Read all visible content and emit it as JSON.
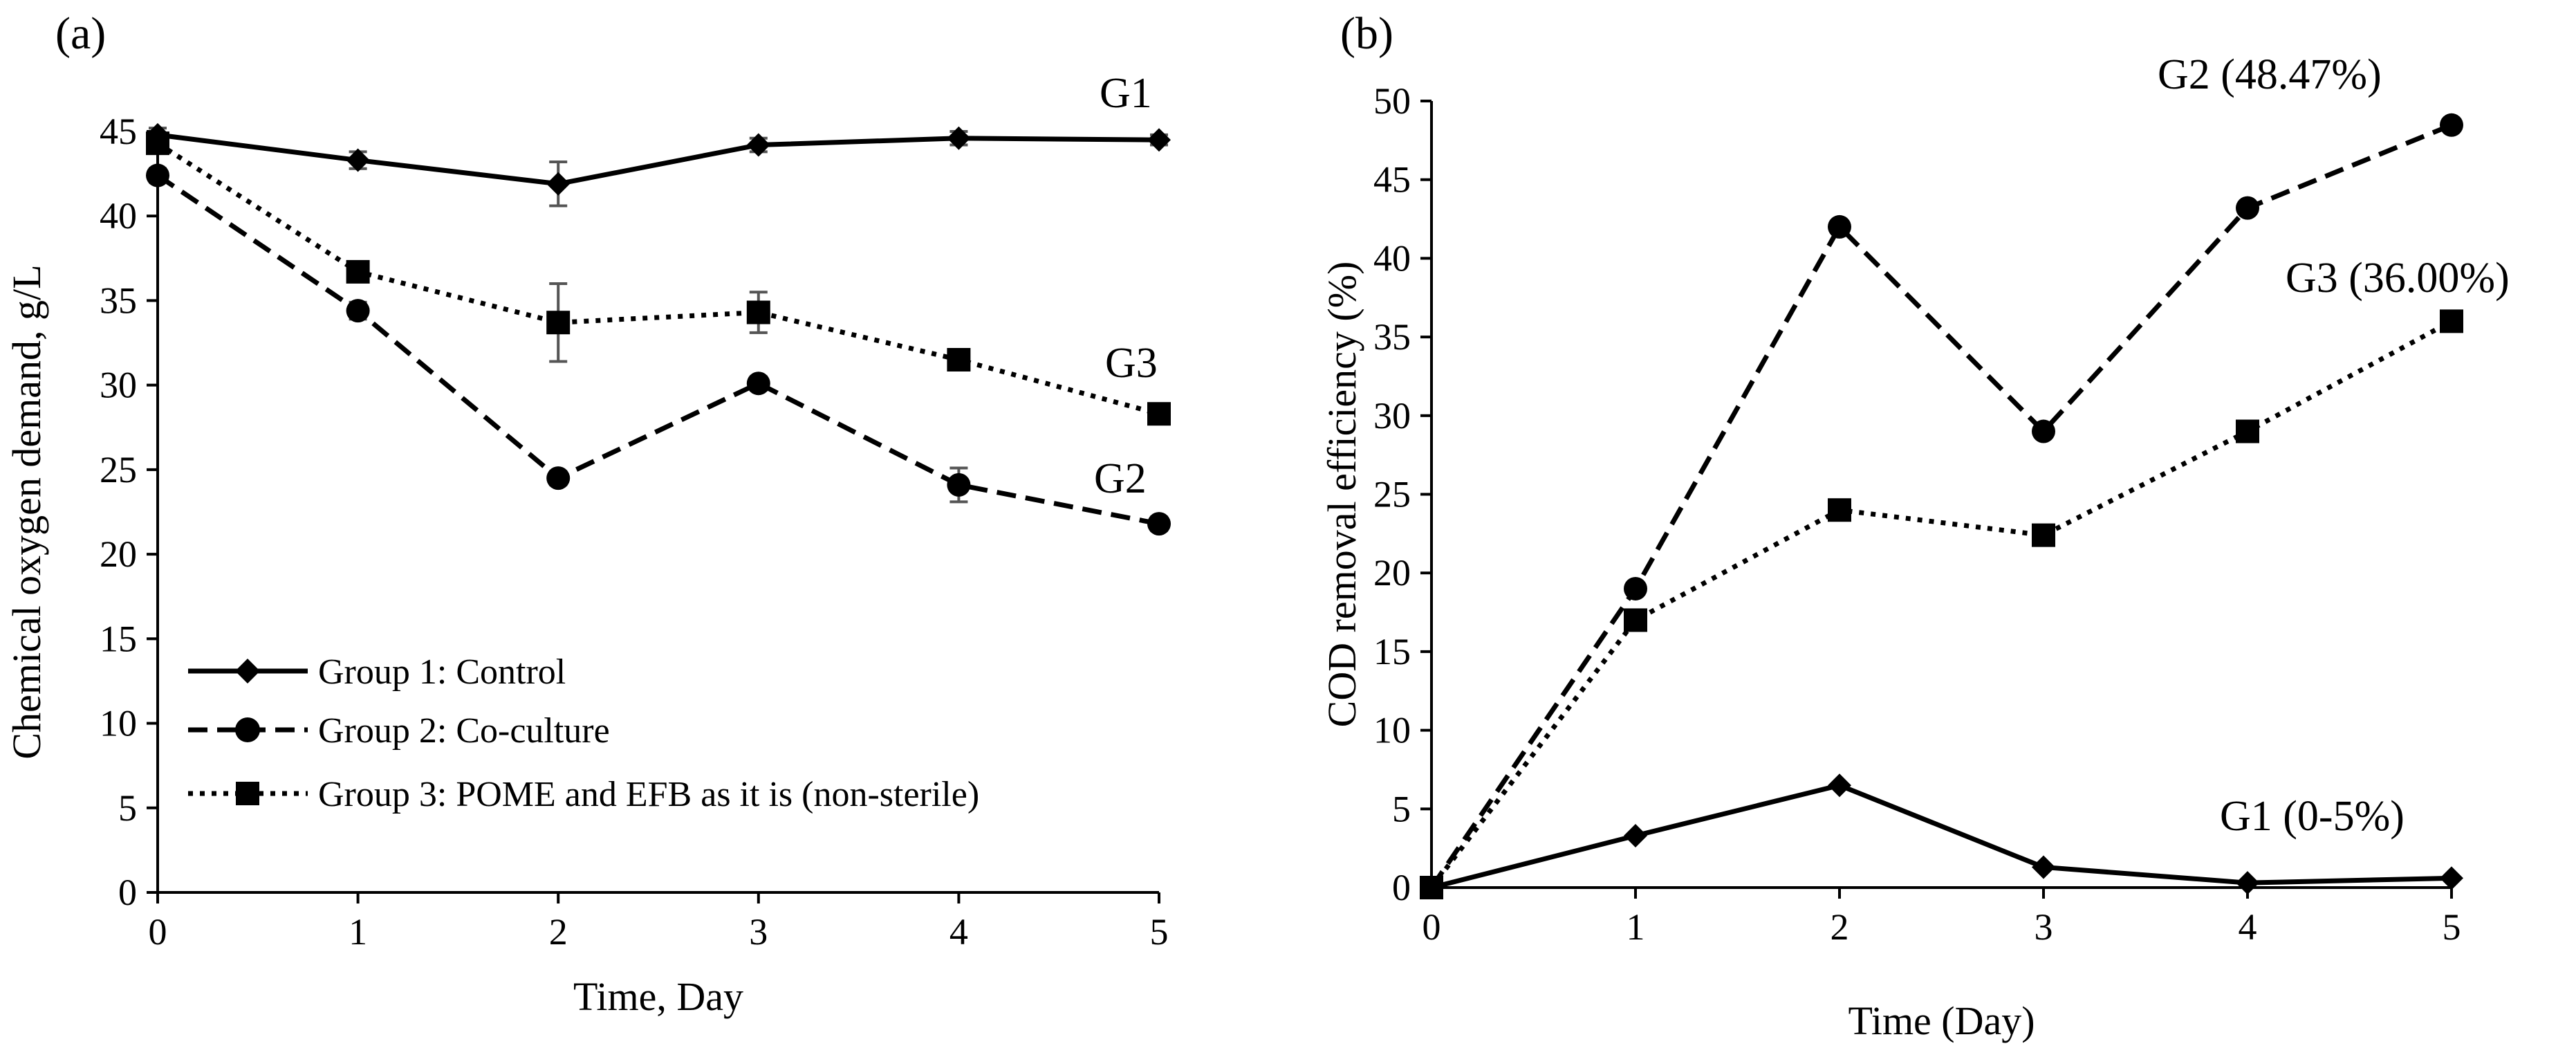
{
  "chart_data": [
    {
      "panel": "(a)",
      "type": "line",
      "xlabel": "Time, Day",
      "ylabel": "Chemical oxygen demand, g/L",
      "xlim": [
        0,
        5
      ],
      "ylim": [
        0,
        45
      ],
      "xticks": [
        0,
        1,
        2,
        3,
        4,
        5
      ],
      "yticks": [
        0,
        5,
        10,
        15,
        20,
        25,
        30,
        35,
        40,
        45
      ],
      "legend_position": "bottom-left",
      "series": [
        {
          "name": "Group 1: Control",
          "short": "G1",
          "marker": "diamond",
          "dash": "solid",
          "x": [
            0,
            1,
            2,
            3,
            4,
            5
          ],
          "values": [
            44.8,
            43.3,
            41.9,
            44.2,
            44.6,
            44.5
          ],
          "errors": [
            0.4,
            0.5,
            1.3,
            0.4,
            0.4,
            0.3
          ]
        },
        {
          "name": "Group 2: Co-culture",
          "short": "G2",
          "marker": "circle",
          "dash": "dashed",
          "x": [
            0,
            1,
            2,
            3,
            4,
            5
          ],
          "values": [
            42.4,
            34.4,
            24.5,
            30.1,
            24.1,
            21.8
          ],
          "errors": [
            0.4,
            0.5,
            0.4,
            0.4,
            1.0,
            0.4
          ]
        },
        {
          "name": "Group 3: POME and EFB as it is (non-sterile)",
          "short": "G3",
          "marker": "square",
          "dash": "dotted",
          "x": [
            0,
            1,
            2,
            3,
            4,
            5
          ],
          "values": [
            44.3,
            36.7,
            33.7,
            34.3,
            31.5,
            28.3
          ],
          "errors": [
            0.4,
            0.5,
            2.3,
            1.2,
            0.4,
            0.4
          ]
        }
      ],
      "annotations": [
        "G1",
        "G3",
        "G2"
      ]
    },
    {
      "panel": "(b)",
      "type": "line",
      "xlabel": "Time (Day)",
      "ylabel": "COD removal efficiency (%)",
      "xlim": [
        0,
        5
      ],
      "ylim": [
        0,
        50
      ],
      "xticks": [
        0,
        1,
        2,
        3,
        4,
        5
      ],
      "yticks": [
        0,
        5,
        10,
        15,
        20,
        25,
        30,
        35,
        40,
        45,
        50
      ],
      "series": [
        {
          "name": "Group 1: Control",
          "short": "G1",
          "marker": "diamond",
          "dash": "solid",
          "x": [
            0,
            1,
            2,
            3,
            4,
            5
          ],
          "values": [
            0,
            3.3,
            6.5,
            1.3,
            0.3,
            0.6
          ]
        },
        {
          "name": "Group 2: Co-culture",
          "short": "G2",
          "marker": "circle",
          "dash": "dashed",
          "x": [
            0,
            1,
            2,
            3,
            4,
            5
          ],
          "values": [
            0,
            19.0,
            42.0,
            29.0,
            43.2,
            48.47
          ]
        },
        {
          "name": "Group 3: POME and EFB as it is (non-sterile)",
          "short": "G3",
          "marker": "square",
          "dash": "dotted",
          "x": [
            0,
            1,
            2,
            3,
            4,
            5
          ],
          "values": [
            0,
            17.0,
            24.0,
            22.4,
            29.0,
            36.0
          ]
        }
      ],
      "annotations": [
        "G2 (48.47%)",
        "G3 (36.00%)",
        "G1 (0-5%)"
      ]
    }
  ]
}
